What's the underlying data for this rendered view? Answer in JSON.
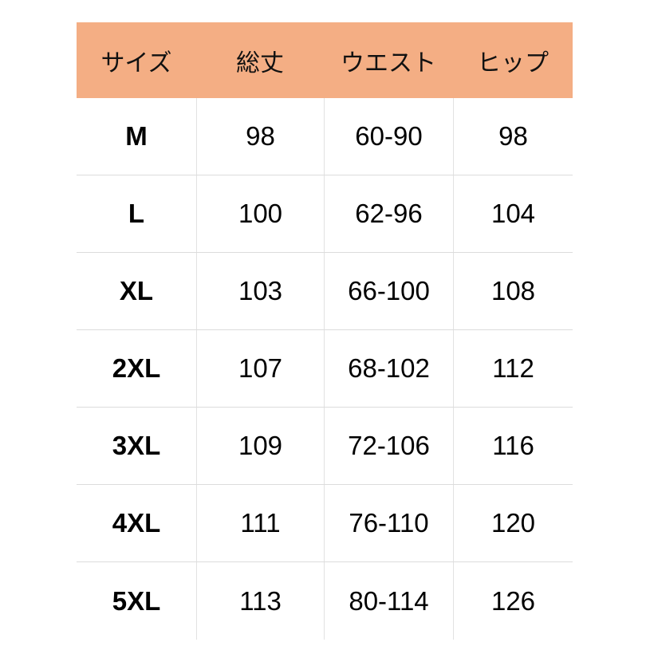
{
  "table": {
    "headers": [
      "サイズ",
      "総丈",
      "ウエスト",
      "ヒップ"
    ],
    "header_color": "#F4AE84",
    "rows": [
      [
        "M",
        "98",
        "60-90",
        "98"
      ],
      [
        "L",
        "100",
        "62-96",
        "104"
      ],
      [
        "XL",
        "103",
        "66-100",
        "108"
      ],
      [
        "2XL",
        "107",
        "68-102",
        "112"
      ],
      [
        "3XL",
        "109",
        "72-106",
        "116"
      ],
      [
        "4XL",
        "111",
        "76-110",
        "120"
      ],
      [
        "5XL",
        "113",
        "80-114",
        "126"
      ]
    ]
  }
}
